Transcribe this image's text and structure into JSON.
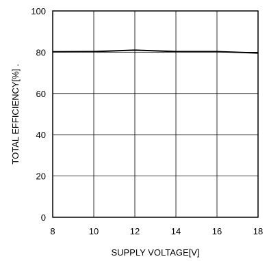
{
  "chart_data": {
    "type": "line",
    "xlabel": "SUPPLY VOLTAGE[V]",
    "ylabel": "TOTAL EFFICIENCY[%]  .",
    "xlim": [
      8,
      18
    ],
    "ylim": [
      0,
      100
    ],
    "x_ticks": [
      "8",
      "10",
      "12",
      "14",
      "16",
      "18"
    ],
    "y_ticks": [
      "0",
      "20",
      "40",
      "60",
      "80",
      "100"
    ],
    "grid": true,
    "legend": "none",
    "series": [
      {
        "x": [
          8,
          10,
          12,
          14,
          16,
          18
        ],
        "values": [
          80.2,
          80.3,
          81.0,
          80.3,
          80.3,
          79.6
        ]
      }
    ]
  }
}
